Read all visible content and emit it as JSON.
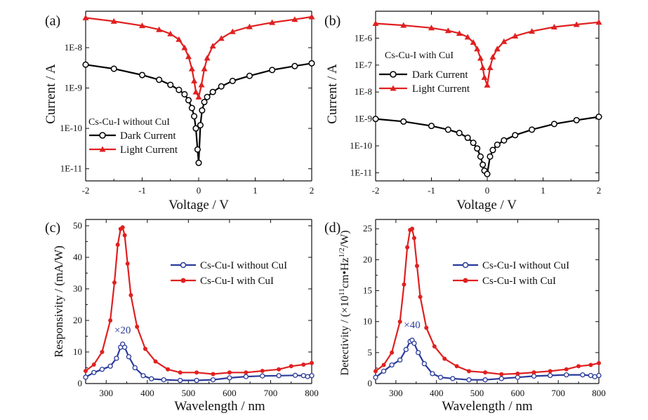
{
  "chart_data": [
    {
      "panel": "(a)",
      "type": "line",
      "xlabel": "Voltage / V",
      "ylabel": "Current / A",
      "xlim": [
        -2,
        2
      ],
      "ylim": [
        5e-12,
        8e-08
      ],
      "yscale": "log",
      "xticks": [
        -2,
        -1,
        0,
        1,
        2
      ],
      "yticks": [
        1e-11,
        1e-10,
        1e-09,
        1e-08
      ],
      "ytick_labels": [
        "1E-11",
        "1E-10",
        "1E-9",
        "1E-8"
      ],
      "legend_title": "Cs-Cu-I without CuI",
      "legend_position": "lower-left",
      "series": [
        {
          "name": "Dark Current",
          "color": "#000000",
          "marker": "circle",
          "x": [
            -2,
            -1.5,
            -1,
            -0.7,
            -0.5,
            -0.35,
            -0.25,
            -0.18,
            -0.12,
            -0.08,
            -0.05,
            -0.02,
            0,
            0.03,
            0.06,
            0.1,
            0.15,
            0.25,
            0.4,
            0.6,
            0.9,
            1.3,
            1.7,
            2
          ],
          "y": [
            3.8e-09,
            3e-09,
            2.1e-09,
            1.6e-09,
            1.2e-09,
            9e-10,
            7e-10,
            5e-10,
            3.2e-10,
            2e-10,
            1e-10,
            3e-11,
            1.4e-11,
            1.2e-10,
            2.8e-10,
            4.5e-10,
            6e-10,
            8e-10,
            1.1e-09,
            1.5e-09,
            2e-09,
            2.8e-09,
            3.5e-09,
            4.1e-09
          ]
        },
        {
          "name": "Light Current",
          "color": "#e02020",
          "marker": "triangle",
          "x": [
            -2,
            -1.5,
            -1,
            -0.7,
            -0.5,
            -0.35,
            -0.25,
            -0.18,
            -0.12,
            -0.08,
            -0.05,
            0,
            0.05,
            0.1,
            0.15,
            0.25,
            0.4,
            0.6,
            0.9,
            1.3,
            1.7,
            2
          ],
          "y": [
            5.5e-08,
            4.5e-08,
            3.5e-08,
            2.8e-08,
            2.2e-08,
            1.6e-08,
            1e-08,
            6e-09,
            3e-09,
            1.5e-09,
            8e-10,
            6e-10,
            1.2e-09,
            3e-09,
            5.5e-09,
            1.1e-08,
            1.7e-08,
            2.5e-08,
            3.3e-08,
            4.2e-08,
            5e-08,
            5.8e-08
          ]
        }
      ]
    },
    {
      "panel": "(b)",
      "type": "line",
      "xlabel": "Voltage / V",
      "ylabel": "Current / A",
      "xlim": [
        -2,
        2
      ],
      "ylim": [
        5e-12,
        1e-05
      ],
      "yscale": "log",
      "xticks": [
        -2,
        -1,
        0,
        1,
        2
      ],
      "yticks": [
        1e-11,
        1e-10,
        1e-09,
        1e-08,
        1e-07,
        1e-06
      ],
      "ytick_labels": [
        "1E-11",
        "1E-10",
        "1E-9",
        "1E-8",
        "1E-7",
        "1E-6"
      ],
      "legend_title": "Cs-Cu-I with CuI",
      "legend_position": "upper-left",
      "series": [
        {
          "name": "Dark Current",
          "color": "#000000",
          "marker": "circle",
          "x": [
            -2,
            -1.5,
            -1,
            -0.7,
            -0.5,
            -0.35,
            -0.25,
            -0.18,
            -0.12,
            -0.08,
            -0.05,
            0,
            0.05,
            0.1,
            0.18,
            0.3,
            0.5,
            0.8,
            1.2,
            1.6,
            2
          ],
          "y": [
            1e-09,
            8e-10,
            5.5e-10,
            4e-10,
            3e-10,
            2e-10,
            1.3e-10,
            8e-11,
            4e-11,
            2e-11,
            1.2e-11,
            9e-12,
            4e-11,
            7e-11,
            1.1e-10,
            1.6e-10,
            2.5e-10,
            4e-10,
            6.5e-10,
            9e-10,
            1.2e-09
          ]
        },
        {
          "name": "Light Current",
          "color": "#e02020",
          "marker": "triangle",
          "x": [
            -2,
            -1.5,
            -1,
            -0.7,
            -0.5,
            -0.35,
            -0.25,
            -0.18,
            -0.12,
            -0.08,
            -0.05,
            0,
            0.05,
            0.1,
            0.18,
            0.3,
            0.5,
            0.8,
            1.2,
            1.6,
            2
          ],
          "y": [
            3.5e-06,
            3e-06,
            2.4e-06,
            1.9e-06,
            1.5e-06,
            1.1e-06,
            7e-07,
            4e-07,
            1.8e-07,
            8e-08,
            3.5e-08,
            1.8e-08,
            8e-08,
            2e-07,
            4e-07,
            7.5e-07,
            1.2e-06,
            1.8e-06,
            2.6e-06,
            3.2e-06,
            3.9e-06
          ]
        }
      ]
    },
    {
      "panel": "(c)",
      "type": "line",
      "xlabel": "Wavelength / nm",
      "ylabel": "Responsivity / (mA/W)",
      "xlim": [
        250,
        800
      ],
      "ylim": [
        0,
        52
      ],
      "xticks": [
        300,
        400,
        500,
        600,
        700,
        800
      ],
      "yticks": [
        0,
        10,
        20,
        30,
        40,
        50
      ],
      "annotation": "×20",
      "annotation_point": [
        340,
        15
      ],
      "legend_position": "upper-right",
      "series": [
        {
          "name": "Cs-Cu-I without CuI",
          "color": "#2a3a9a",
          "marker": "open-circle",
          "x": [
            250,
            270,
            290,
            310,
            325,
            335,
            340,
            345,
            355,
            370,
            390,
            410,
            440,
            480,
            520,
            560,
            600,
            640,
            680,
            720,
            760,
            780,
            790,
            800
          ],
          "y": [
            2.0,
            3.5,
            4.5,
            5.5,
            8.0,
            11.5,
            12.5,
            11.5,
            8.5,
            5.0,
            2.5,
            1.5,
            1.2,
            1.0,
            1.0,
            1.2,
            1.8,
            2.2,
            2.4,
            2.5,
            2.6,
            2.5,
            2.2,
            2.5
          ]
        },
        {
          "name": "Cs-Cu-I with CuI",
          "color": "#e02020",
          "marker": "filled-circle",
          "x": [
            250,
            270,
            290,
            310,
            320,
            328,
            335,
            340,
            345,
            352,
            360,
            375,
            395,
            420,
            450,
            480,
            520,
            560,
            600,
            640,
            680,
            720,
            750,
            780,
            800
          ],
          "y": [
            4.0,
            6.0,
            10.0,
            20.0,
            32.0,
            44.0,
            49.0,
            49.5,
            47.0,
            38.0,
            28.0,
            18.0,
            11.0,
            7.0,
            4.5,
            3.5,
            3.5,
            3.0,
            3.5,
            3.5,
            4.0,
            4.5,
            5.5,
            6.0,
            6.5
          ]
        }
      ]
    },
    {
      "panel": "(d)",
      "type": "line",
      "xlabel": "Wavelength / nm",
      "ylabel_prefix": "Detectivity / (×10",
      "ylabel_exp1": "11",
      "ylabel_mid": "cm•Hz",
      "ylabel_exp2": "1/2",
      "ylabel_suffix": "/W)",
      "xlim": [
        250,
        800
      ],
      "ylim": [
        0,
        26.5
      ],
      "xticks": [
        300,
        400,
        500,
        600,
        700,
        800
      ],
      "yticks": [
        0,
        5,
        10,
        15,
        20,
        25
      ],
      "annotation": "×40",
      "annotation_point": [
        340,
        8.5
      ],
      "legend_position": "upper-right",
      "series": [
        {
          "name": "Cs-Cu-I without CuI",
          "color": "#2a3a9a",
          "marker": "open-circle",
          "x": [
            250,
            270,
            290,
            310,
            325,
            335,
            340,
            345,
            355,
            370,
            390,
            410,
            440,
            480,
            520,
            560,
            600,
            640,
            680,
            720,
            760,
            780,
            790,
            800
          ],
          "y": [
            1.0,
            2.0,
            3.0,
            3.8,
            5.5,
            6.8,
            7.0,
            6.5,
            5.0,
            3.2,
            1.6,
            1.0,
            0.8,
            0.6,
            0.6,
            0.8,
            1.0,
            1.2,
            1.3,
            1.4,
            1.4,
            1.3,
            1.1,
            1.3
          ]
        },
        {
          "name": "Cs-Cu-I with CuI",
          "color": "#e02020",
          "marker": "filled-circle",
          "x": [
            250,
            270,
            290,
            310,
            320,
            328,
            335,
            340,
            345,
            352,
            360,
            375,
            395,
            420,
            450,
            480,
            520,
            560,
            600,
            640,
            680,
            720,
            750,
            780,
            800
          ],
          "y": [
            2.0,
            3.0,
            5.0,
            10.0,
            16.0,
            22.0,
            24.8,
            25.0,
            23.5,
            19.0,
            14.0,
            9.0,
            6.0,
            4.0,
            2.8,
            2.0,
            1.8,
            1.5,
            1.6,
            1.8,
            2.0,
            2.3,
            2.8,
            3.0,
            3.3
          ]
        }
      ]
    }
  ]
}
